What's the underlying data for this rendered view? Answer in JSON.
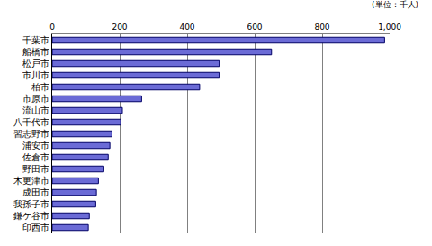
{
  "chart_data": {
    "type": "bar",
    "orientation": "horizontal",
    "annotations": [
      "(単位：千人)"
    ],
    "categories": [
      "千葉市",
      "船橋市",
      "松戸市",
      "市川市",
      "柏市",
      "市原市",
      "流山市",
      "八千代市",
      "習志野市",
      "浦安市",
      "佐倉市",
      "野田市",
      "木更津市",
      "成田市",
      "我孫子市",
      "鎌ケ谷市",
      "印西市"
    ],
    "values": [
      985,
      650,
      495,
      495,
      437,
      265,
      208,
      203,
      177,
      171,
      166,
      153,
      137,
      131,
      129,
      110,
      107
    ],
    "color": "#6b6bd6",
    "xlim": [
      0,
      1000
    ],
    "xticks": [
      0,
      200,
      400,
      600,
      800,
      {
        "value": 1000,
        "label": "1,000"
      }
    ],
    "grid": true
  }
}
